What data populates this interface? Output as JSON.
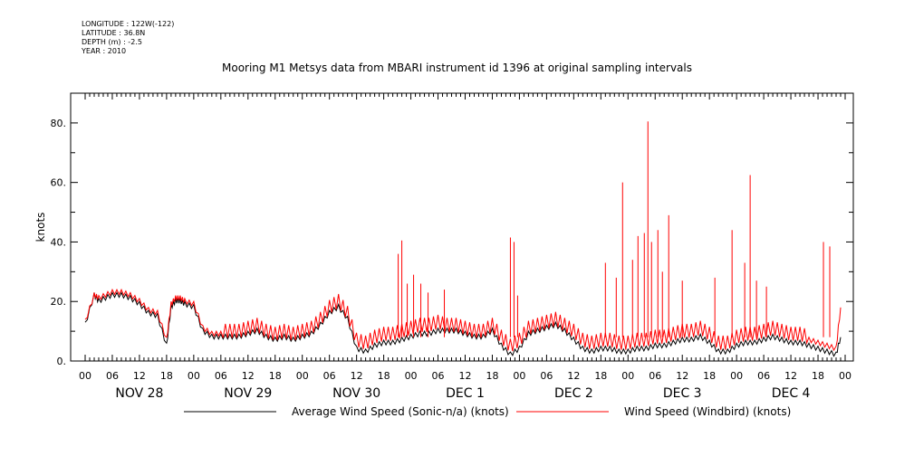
{
  "meta": {
    "longitude": "LONGITUDE : 122W(-122)",
    "latitude": "LATITUDE : 36.8N",
    "depth": "DEPTH (m) : -2.5",
    "year": "YEAR : 2010"
  },
  "chart_data": {
    "type": "line",
    "title": "Mooring M1 Metsys data from MBARI instrument id 1396 at original sampling intervals",
    "xlabel": "",
    "ylabel": "knots",
    "ylim": [
      0,
      90
    ],
    "xlim_hours": [
      0,
      168
    ],
    "yticks": [
      0,
      20,
      40,
      60,
      80
    ],
    "ytick_labels": [
      "0.",
      "20.",
      "40.",
      "60.",
      "80."
    ],
    "hour_ticks": [
      "00",
      "06",
      "12",
      "18",
      "00",
      "06",
      "12",
      "18",
      "00",
      "06",
      "12",
      "18",
      "00",
      "06",
      "12",
      "18",
      "00",
      "06",
      "12",
      "18",
      "00",
      "06",
      "12",
      "18",
      "00",
      "06",
      "12",
      "18",
      "00"
    ],
    "day_labels": [
      "NOV 28",
      "NOV 29",
      "NOV 30",
      "DEC 1",
      "DEC 2",
      "DEC 3",
      "DEC 4"
    ],
    "legend_position": "bottom",
    "grid": false,
    "series": [
      {
        "name": "Average Wind Speed (Sonic-n/a) (knots)",
        "color": "#000000",
        "x": [
          0,
          2,
          3,
          6,
          8,
          10,
          12,
          14,
          16,
          18,
          19,
          20,
          21,
          22,
          24,
          26,
          28,
          30,
          32,
          34,
          36,
          38,
          40,
          42,
          44,
          46,
          48,
          50,
          52,
          54,
          56,
          58,
          60,
          62,
          64,
          66,
          68,
          70,
          72,
          74,
          76,
          78,
          80,
          82,
          84,
          86,
          88,
          90,
          92,
          94,
          96,
          98,
          100,
          102,
          104,
          106,
          108,
          110,
          112,
          114,
          116,
          118,
          120,
          122,
          124,
          126,
          128,
          130,
          132,
          134,
          136,
          138,
          140,
          142,
          144,
          146,
          148,
          150,
          152,
          154,
          156,
          158,
          160,
          162,
          164,
          166,
          167
        ],
        "y": [
          12,
          22,
          20,
          22,
          22,
          21,
          19,
          16,
          15,
          5,
          18,
          20,
          20,
          19,
          18,
          10,
          8,
          8,
          8,
          8,
          9,
          10,
          8,
          7,
          8,
          7,
          8,
          9,
          12,
          16,
          18,
          14,
          4,
          3,
          5,
          6,
          6,
          7,
          8,
          9,
          9,
          10,
          10,
          10,
          9,
          8,
          8,
          10,
          5,
          2,
          4,
          9,
          10,
          11,
          12,
          10,
          7,
          4,
          3,
          4,
          4,
          3,
          3,
          4,
          4,
          5,
          5,
          6,
          7,
          7,
          8,
          6,
          3,
          3,
          5,
          6,
          6,
          7,
          8,
          7,
          6,
          6,
          5,
          4,
          3,
          2,
          8
        ]
      },
      {
        "name": "Wind Speed (Windbird) (knots)",
        "color": "#ff0000",
        "x": [
          0,
          2,
          3,
          6,
          8,
          10,
          12,
          14,
          16,
          18,
          19,
          20,
          21,
          22,
          24,
          26,
          28,
          30,
          32,
          34,
          36,
          38,
          40,
          42,
          44,
          46,
          48,
          50,
          52,
          54,
          56,
          58,
          60,
          62,
          64,
          66,
          68,
          70,
          72,
          74,
          76,
          78,
          80,
          82,
          84,
          86,
          88,
          90,
          92,
          94,
          96,
          98,
          100,
          102,
          104,
          106,
          108,
          110,
          112,
          114,
          116,
          118,
          120,
          122,
          124,
          126,
          128,
          130,
          132,
          134,
          136,
          138,
          140,
          142,
          144,
          146,
          148,
          150,
          152,
          154,
          156,
          158,
          160,
          162,
          164,
          166,
          167
        ],
        "y": [
          13,
          22,
          21,
          23,
          23,
          22,
          20,
          17,
          16,
          7,
          19,
          21,
          21,
          20,
          19,
          11,
          9,
          9,
          9,
          9,
          10,
          11,
          9,
          8,
          9,
          8,
          9,
          10,
          13,
          17,
          19,
          15,
          6,
          5,
          7,
          8,
          8,
          9,
          10,
          11,
          11,
          12,
          11,
          11,
          10,
          9,
          9,
          11,
          7,
          4,
          6,
          10,
          11,
          12,
          13,
          11,
          9,
          6,
          5,
          6,
          6,
          5,
          5,
          6,
          6,
          7,
          7,
          8,
          9,
          9,
          10,
          8,
          5,
          5,
          7,
          8,
          8,
          9,
          10,
          9,
          8,
          8,
          7,
          6,
          5,
          4,
          18
        ],
        "spikes": [
          {
            "x": 69.2,
            "y": 36
          },
          {
            "x": 70.0,
            "y": 40.5
          },
          {
            "x": 71.2,
            "y": 26
          },
          {
            "x": 72.6,
            "y": 29
          },
          {
            "x": 74.2,
            "y": 26
          },
          {
            "x": 75.8,
            "y": 23
          },
          {
            "x": 79.4,
            "y": 24
          },
          {
            "x": 94.0,
            "y": 41.5
          },
          {
            "x": 94.8,
            "y": 40
          },
          {
            "x": 95.6,
            "y": 22
          },
          {
            "x": 115.0,
            "y": 33
          },
          {
            "x": 117.4,
            "y": 28
          },
          {
            "x": 118.8,
            "y": 60
          },
          {
            "x": 121.0,
            "y": 34
          },
          {
            "x": 122.2,
            "y": 42
          },
          {
            "x": 123.6,
            "y": 43
          },
          {
            "x": 124.4,
            "y": 80.5
          },
          {
            "x": 125.2,
            "y": 40
          },
          {
            "x": 126.6,
            "y": 44
          },
          {
            "x": 127.6,
            "y": 30
          },
          {
            "x": 129.0,
            "y": 49
          },
          {
            "x": 132.0,
            "y": 27
          },
          {
            "x": 139.2,
            "y": 28
          },
          {
            "x": 143.0,
            "y": 44
          },
          {
            "x": 145.8,
            "y": 33
          },
          {
            "x": 147.0,
            "y": 62.5
          },
          {
            "x": 148.4,
            "y": 27
          },
          {
            "x": 150.6,
            "y": 25
          },
          {
            "x": 163.2,
            "y": 40
          },
          {
            "x": 164.6,
            "y": 38.5
          }
        ]
      }
    ]
  }
}
